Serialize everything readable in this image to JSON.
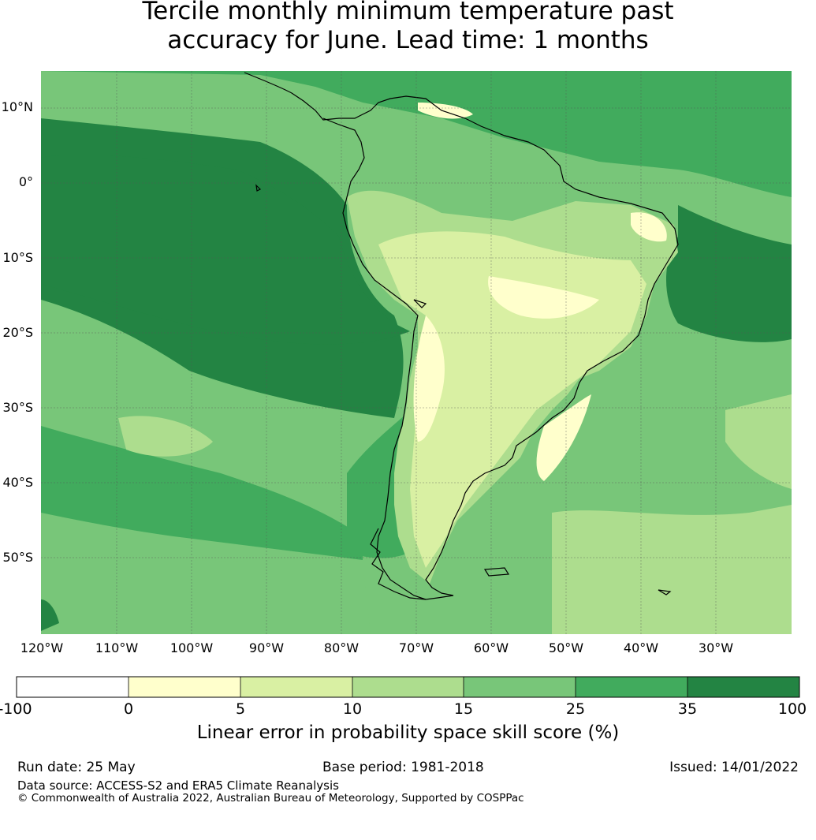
{
  "title": {
    "line1": "Tercile monthly minimum temperature past",
    "line2": "accuracy for June. Lead time: 1 months"
  },
  "map": {
    "region": "South America",
    "lat_labels": [
      "10°N",
      "0°",
      "10°S",
      "20°S",
      "30°S",
      "40°S",
      "50°S"
    ],
    "lon_labels": [
      "120°W",
      "110°W",
      "100°W",
      "90°W",
      "80°W",
      "70°W",
      "60°W",
      "50°W",
      "40°W",
      "30°W"
    ],
    "gridlines": true,
    "coastlines": true
  },
  "colorbar": {
    "ticks": [
      "-100",
      "0",
      "5",
      "10",
      "15",
      "25",
      "35",
      "100"
    ],
    "colors": [
      "#ffffff",
      "#ffffcc",
      "#d9f0a3",
      "#addd8e",
      "#78c679",
      "#41ab5d",
      "#238443"
    ],
    "label": "Linear error in probability space skill score (%)"
  },
  "footer": {
    "run_date": "Run date: 25 May",
    "base_period": "Base period: 1981-2018",
    "issued": "Issued: 14/01/2022",
    "data_source": "Data source: ACCESS-S2 and ERA5 Climate Reanalysis",
    "copyright": "© Commonwealth of Australia 2022, Australian Bureau of Meteorology, Supported by COSPPac"
  }
}
